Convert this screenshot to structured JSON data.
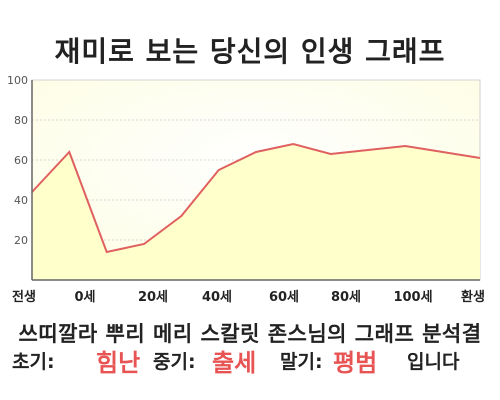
{
  "title": "재미로 보는 당신의 인생 그래프",
  "subtitle": "쓰띠깔라 뿌리 메리 스칼릿 존스님의 그래프 분석결",
  "result": {
    "early_label": "초기:",
    "early_value": "힘난",
    "mid_label": "중기:",
    "mid_value": "출세",
    "late_label": "말기:",
    "late_value": "평범",
    "ending": "입니다"
  },
  "colors": {
    "line": "#e06060",
    "fill": "#ffffcc",
    "highlight": "#e85454"
  },
  "chart_data": {
    "type": "area",
    "x": [
      -10,
      0,
      10,
      20,
      30,
      40,
      50,
      60,
      70,
      80,
      90,
      100,
      110
    ],
    "values": [
      44,
      64,
      14,
      18,
      32,
      55,
      64,
      68,
      63,
      65,
      67,
      64,
      61
    ],
    "x_tick_labels": [
      "전생",
      "0세",
      "20세",
      "40세",
      "60세",
      "80세",
      "100세",
      "환생"
    ],
    "y_ticks": [
      "100",
      "80",
      "60",
      "40",
      "20"
    ],
    "ylim": [
      0,
      100
    ],
    "grid": true
  }
}
